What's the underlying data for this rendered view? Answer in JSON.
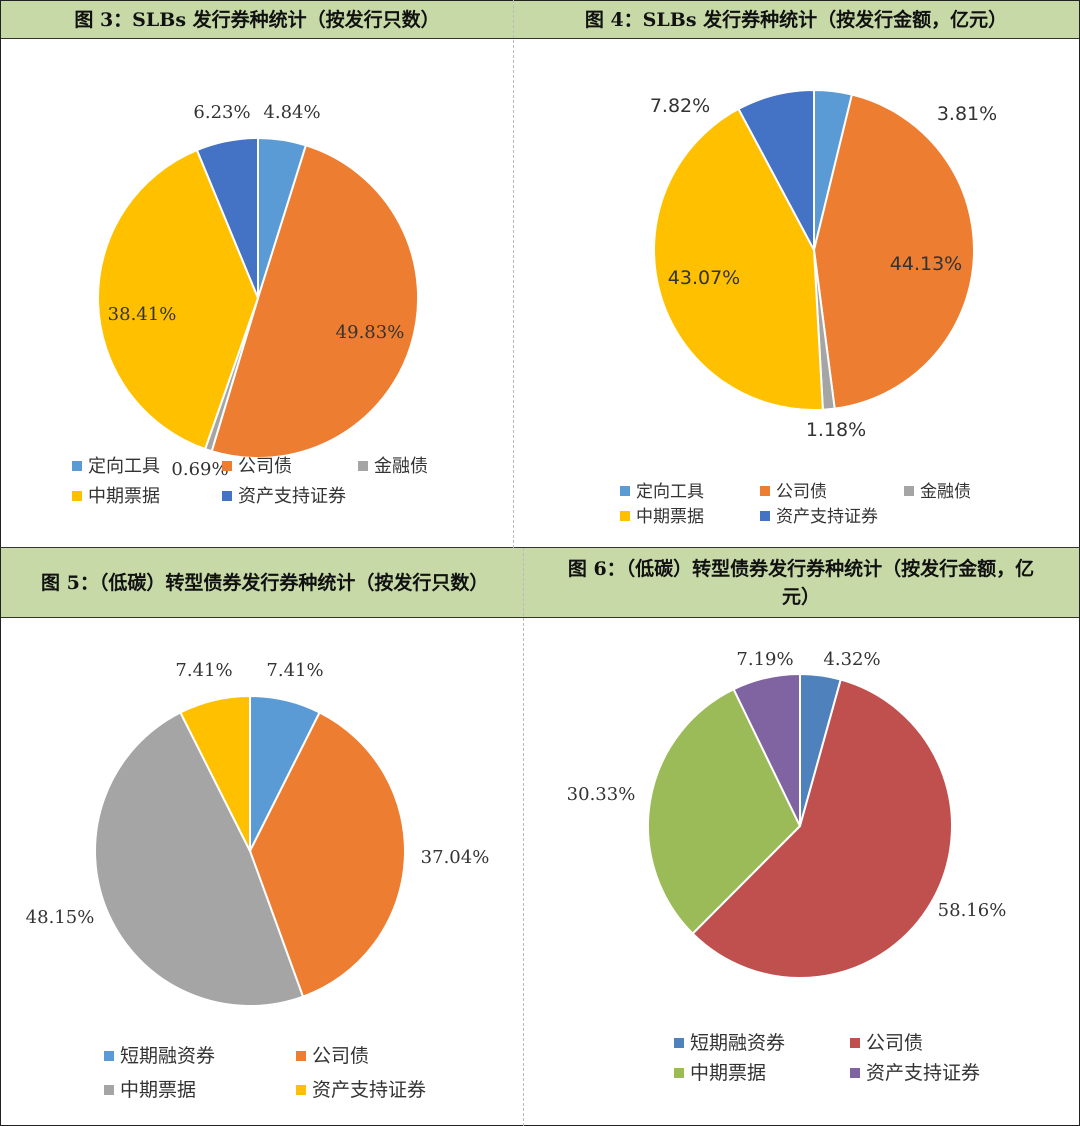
{
  "figures": [
    {
      "title": "图 3：SLBs 发行券种统计（按发行只数）"
    },
    {
      "title": "图 4：SLBs 发行券种统计（按发行金额，亿元）"
    },
    {
      "title": "图 5：（低碳）转型债券发行券种统计（按发行只数）"
    },
    {
      "title": "图 6：（低碳）转型债券发行券种统计（按发行金额，亿元）"
    }
  ],
  "chart_data": [
    {
      "type": "pie",
      "title": "图 3：SLBs 发行券种统计（按发行只数）",
      "categories": [
        "定向工具",
        "公司债",
        "金融债",
        "中期票据",
        "资产支持证券"
      ],
      "values": [
        4.84,
        49.83,
        0.69,
        38.41,
        6.23
      ],
      "labels": [
        "4.84%",
        "49.83%",
        "0.69%",
        "38.41%",
        "6.23%"
      ],
      "colors": [
        "#5b9bd5",
        "#ed7d31",
        "#a5a5a5",
        "#ffc000",
        "#4472c4"
      ],
      "legend": "bottom"
    },
    {
      "type": "pie",
      "title": "图 4：SLBs 发行券种统计（按发行金额，亿元）",
      "categories": [
        "定向工具",
        "公司债",
        "金融债",
        "中期票据",
        "资产支持证券"
      ],
      "values": [
        3.81,
        44.13,
        1.18,
        43.07,
        7.82
      ],
      "labels": [
        "3.81%",
        "44.13%",
        "1.18%",
        "43.07%",
        "7.82%"
      ],
      "colors": [
        "#5b9bd5",
        "#ed7d31",
        "#a5a5a5",
        "#ffc000",
        "#4472c4"
      ],
      "legend": "bottom"
    },
    {
      "type": "pie",
      "title": "图 5：（低碳）转型债券发行券种统计（按发行只数）",
      "categories": [
        "短期融资券",
        "公司债",
        "中期票据",
        "资产支持证券"
      ],
      "values": [
        7.41,
        37.04,
        48.15,
        7.41
      ],
      "labels": [
        "7.41%",
        "37.04%",
        "48.15%",
        "7.41%"
      ],
      "colors": [
        "#5b9bd5",
        "#ed7d31",
        "#a5a5a5",
        "#ffc000"
      ],
      "legend": "bottom"
    },
    {
      "type": "pie",
      "title": "图 6：（低碳）转型债券发行券种统计（按发行金额，亿元）",
      "categories": [
        "短期融资券",
        "公司债",
        "中期票据",
        "资产支持证券"
      ],
      "values": [
        4.32,
        58.16,
        30.33,
        7.19
      ],
      "labels": [
        "4.32%",
        "58.16%",
        "30.33%",
        "7.19%"
      ],
      "colors": [
        "#4f81bd",
        "#c0504d",
        "#9bbb59",
        "#8064a2"
      ],
      "legend": "bottom"
    }
  ]
}
